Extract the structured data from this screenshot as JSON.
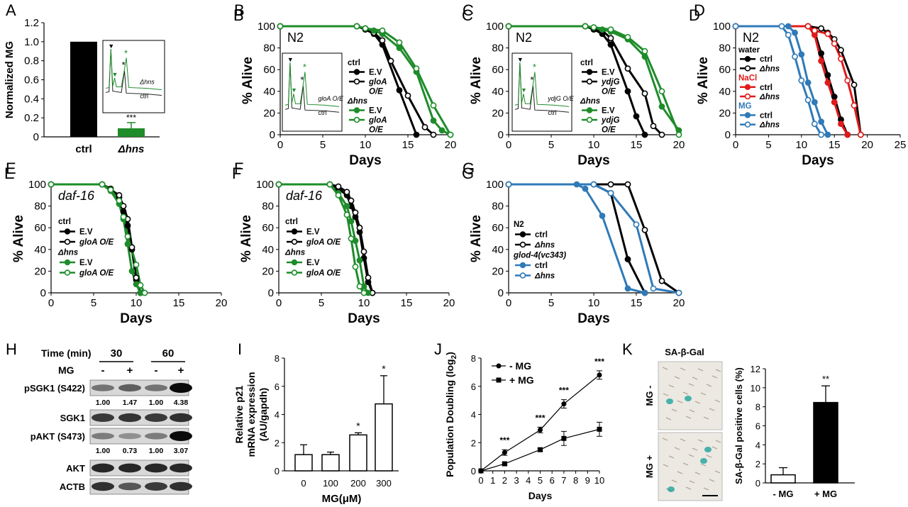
{
  "colors": {
    "black": "#000000",
    "green": "#1e8c2a",
    "red": "#e01b1b",
    "blue": "#2f7ab8",
    "gray": "#777777",
    "teal": "#2aa7a0"
  },
  "chart_data": [
    {
      "id": "A",
      "letter": "A",
      "type": "bar",
      "ylabel": "Normalized MG",
      "ylim": [
        0,
        1.2
      ],
      "yticks": [
        "0",
        "0.2",
        "0.4",
        "0.6",
        "0.8",
        "1.0",
        "1.2"
      ],
      "categories": [
        "ctrl",
        "Δhns"
      ],
      "values": [
        1.0,
        0.09
      ],
      "errors": [
        0,
        0.06
      ],
      "bar_colors": [
        "black",
        "green"
      ],
      "sig": "***",
      "inset_labels": [
        "Δhns",
        "ctrl"
      ]
    },
    {
      "id": "B",
      "letter": "B",
      "type": "line",
      "strain": "N2",
      "xlabel": "Days",
      "ylabel": "% Alive",
      "xlim": [
        0,
        20
      ],
      "ylim": [
        0,
        100
      ],
      "xticks": [
        "0",
        "5",
        "10",
        "15",
        "20"
      ],
      "yticks": [
        "0",
        "20",
        "40",
        "60",
        "80",
        "100"
      ],
      "inset_labels": [
        "gloA O/E",
        "ctrl"
      ],
      "legend_groups": [
        "ctrl",
        "Δhns"
      ],
      "series": [
        {
          "name": "E.V",
          "group": "ctrl",
          "color": "black",
          "filled": true,
          "x": [
            0,
            9,
            10,
            11,
            12,
            14,
            16
          ],
          "y": [
            100,
            100,
            97,
            93,
            83,
            41,
            0
          ]
        },
        {
          "name": "gloA O/E",
          "group": "ctrl",
          "color": "black",
          "filled": false,
          "x": [
            0,
            9,
            10,
            11,
            12,
            13,
            15,
            17,
            18
          ],
          "y": [
            100,
            100,
            98,
            94,
            87,
            68,
            36,
            7,
            0
          ]
        },
        {
          "name": "E.V",
          "group": "Δhns",
          "color": "green",
          "filled": true,
          "x": [
            0,
            9,
            11,
            12,
            14,
            16,
            18,
            19,
            20
          ],
          "y": [
            100,
            100,
            96,
            93,
            80,
            58,
            13,
            4,
            0
          ]
        },
        {
          "name": "gloA O/E",
          "group": "Δhns",
          "color": "green",
          "filled": false,
          "x": [
            0,
            9,
            10,
            12,
            14,
            16,
            18,
            20
          ],
          "y": [
            100,
            100,
            98,
            96,
            85,
            61,
            27,
            0
          ]
        }
      ]
    },
    {
      "id": "C",
      "letter": "C",
      "type": "line",
      "strain": "N2",
      "xlabel": "Days",
      "ylabel": "% Alive",
      "xlim": [
        0,
        20
      ],
      "ylim": [
        0,
        100
      ],
      "xticks": [
        "0",
        "5",
        "10",
        "15",
        "20"
      ],
      "yticks": [
        "0",
        "20",
        "40",
        "60",
        "80",
        "100"
      ],
      "inset_labels": [
        "ydjG O/E",
        "ctrl"
      ],
      "legend_groups": [
        "ctrl",
        "Δhns"
      ],
      "series": [
        {
          "name": "E.V",
          "group": "ctrl",
          "color": "black",
          "filled": true,
          "x": [
            0,
            9,
            10,
            11,
            12,
            14,
            15,
            16
          ],
          "y": [
            100,
            100,
            97,
            93,
            83,
            40,
            17,
            0
          ]
        },
        {
          "name": "ydjG O/E",
          "group": "ctrl",
          "color": "black",
          "filled": false,
          "x": [
            0,
            9,
            10,
            11,
            12,
            14,
            16,
            17,
            18
          ],
          "y": [
            100,
            100,
            98,
            96,
            89,
            61,
            38,
            8,
            0
          ]
        },
        {
          "name": "E.V",
          "group": "Δhns",
          "color": "green",
          "filled": true,
          "x": [
            0,
            9,
            11,
            12,
            14,
            16,
            18,
            20
          ],
          "y": [
            100,
            100,
            97,
            95,
            88,
            72,
            26,
            4
          ]
        },
        {
          "name": "ydjG O/E",
          "group": "Δhns",
          "color": "green",
          "filled": false,
          "x": [
            0,
            9,
            10,
            12,
            14,
            16,
            18,
            20
          ],
          "y": [
            100,
            100,
            99,
            97,
            90,
            77,
            40,
            0
          ]
        }
      ]
    },
    {
      "id": "D",
      "letter": "D",
      "type": "line",
      "strain": "N2",
      "xlabel": "Days",
      "ylabel": "% Alive",
      "xlim": [
        0,
        25
      ],
      "ylim": [
        0,
        100
      ],
      "xticks": [
        "0",
        "5",
        "10",
        "15",
        "20",
        "25"
      ],
      "yticks": [
        "0",
        "20",
        "40",
        "60",
        "80",
        "100"
      ],
      "legend_groups": [
        "water",
        "NaCl",
        "MG"
      ],
      "series": [
        {
          "name": "ctrl",
          "group": "water",
          "color": "black",
          "filled": true,
          "x": [
            0,
            11,
            12,
            13,
            14,
            15,
            16,
            17
          ],
          "y": [
            100,
            100,
            95,
            75,
            55,
            35,
            14,
            0
          ]
        },
        {
          "name": "Δhns",
          "group": "water",
          "color": "black",
          "filled": false,
          "x": [
            0,
            11,
            13,
            14,
            15,
            16,
            18,
            19
          ],
          "y": [
            100,
            100,
            98,
            94,
            88,
            78,
            46,
            0
          ]
        },
        {
          "name": "ctrl",
          "group": "NaCl",
          "color": "red",
          "filled": true,
          "x": [
            0,
            11,
            12,
            13,
            14,
            15,
            16,
            17
          ],
          "y": [
            100,
            100,
            92,
            68,
            48,
            30,
            10,
            0
          ]
        },
        {
          "name": "Δhns",
          "group": "NaCl",
          "color": "red",
          "filled": false,
          "x": [
            0,
            11,
            12,
            14,
            15,
            16,
            17,
            18,
            19
          ],
          "y": [
            100,
            100,
            96,
            93,
            84,
            70,
            50,
            27,
            0
          ]
        },
        {
          "name": "ctrl",
          "group": "MG",
          "color": "blue",
          "filled": true,
          "x": [
            0,
            8,
            9,
            10,
            11,
            12,
            13,
            14
          ],
          "y": [
            100,
            100,
            94,
            74,
            48,
            30,
            12,
            0
          ]
        },
        {
          "name": "Δhns",
          "group": "MG",
          "color": "blue",
          "filled": false,
          "x": [
            0,
            7,
            8,
            9,
            10,
            11,
            12,
            13
          ],
          "y": [
            100,
            100,
            92,
            72,
            50,
            32,
            10,
            0
          ]
        }
      ]
    },
    {
      "id": "E",
      "letter": "E",
      "type": "line",
      "strain": "daf-16",
      "xlabel": "Days",
      "ylabel": "% Alive",
      "xlim": [
        0,
        20
      ],
      "ylim": [
        0,
        100
      ],
      "xticks": [
        "0",
        "5",
        "10",
        "15",
        "20"
      ],
      "yticks": [
        "0",
        "20",
        "40",
        "60",
        "80",
        "100"
      ],
      "legend_groups": [
        "ctrl",
        "Δhns"
      ],
      "series": [
        {
          "name": "E.V",
          "group": "ctrl",
          "color": "black",
          "filled": true,
          "x": [
            0,
            6,
            7,
            8,
            8.5,
            9,
            9.5,
            10,
            10.5
          ],
          "y": [
            100,
            100,
            96,
            88,
            75,
            62,
            40,
            12,
            0
          ]
        },
        {
          "name": "gloA O/E",
          "group": "ctrl",
          "color": "black",
          "filled": false,
          "x": [
            0,
            6,
            7,
            8,
            8.5,
            9,
            9.5,
            10,
            10.5
          ],
          "y": [
            100,
            100,
            95,
            90,
            80,
            68,
            42,
            14,
            0
          ]
        },
        {
          "name": "E.V",
          "group": "Δhns",
          "color": "green",
          "filled": true,
          "x": [
            0,
            6,
            7,
            8,
            8.5,
            9,
            9.5,
            10,
            10.5
          ],
          "y": [
            100,
            100,
            94,
            82,
            68,
            45,
            20,
            8,
            0
          ]
        },
        {
          "name": "gloA O/E",
          "group": "Δhns",
          "color": "green",
          "filled": false,
          "x": [
            0,
            6,
            7,
            8,
            8.5,
            9,
            10,
            10.5,
            11
          ],
          "y": [
            100,
            100,
            95,
            85,
            70,
            52,
            26,
            7,
            0
          ]
        }
      ]
    },
    {
      "id": "F",
      "letter": "F",
      "type": "line",
      "strain": "daf-16",
      "xlabel": "Days",
      "ylabel": "% Alive",
      "xlim": [
        0,
        20
      ],
      "ylim": [
        0,
        100
      ],
      "xticks": [
        "0",
        "5",
        "10",
        "15",
        "20"
      ],
      "yticks": [
        "0",
        "20",
        "40",
        "60",
        "80",
        "100"
      ],
      "legend_groups": [
        "ctrl",
        "Δhns"
      ],
      "series": [
        {
          "name": "E.V",
          "group": "ctrl",
          "color": "black",
          "filled": true,
          "x": [
            0,
            6,
            7,
            8,
            8.5,
            9,
            9.5,
            10,
            10.5,
            11
          ],
          "y": [
            100,
            100,
            96,
            90,
            80,
            70,
            56,
            32,
            10,
            0
          ]
        },
        {
          "name": "gloA O/E",
          "group": "ctrl",
          "color": "black",
          "filled": false,
          "x": [
            0,
            6,
            7,
            8,
            8.5,
            9,
            9.5,
            10,
            10.5,
            11
          ],
          "y": [
            100,
            100,
            98,
            93,
            85,
            74,
            60,
            38,
            14,
            0
          ]
        },
        {
          "name": "E.V",
          "group": "Δhns",
          "color": "green",
          "filled": true,
          "x": [
            0,
            6,
            7,
            8,
            8.5,
            9,
            9.5,
            10,
            10.5
          ],
          "y": [
            100,
            100,
            92,
            80,
            66,
            48,
            30,
            6,
            0
          ]
        },
        {
          "name": "gloA O/E",
          "group": "Δhns",
          "color": "green",
          "filled": false,
          "x": [
            0,
            6,
            7,
            8,
            8.5,
            9,
            9.5,
            10
          ],
          "y": [
            100,
            100,
            90,
            72,
            50,
            24,
            6,
            0
          ]
        }
      ]
    },
    {
      "id": "G",
      "letter": "G",
      "type": "line",
      "xlabel": "Days",
      "ylabel": "% Alive",
      "xlim": [
        0,
        20
      ],
      "ylim": [
        0,
        100
      ],
      "xticks": [
        "0",
        "5",
        "10",
        "15",
        "20"
      ],
      "yticks": [
        "0",
        "20",
        "40",
        "60",
        "80",
        "100"
      ],
      "legend_groups": [
        "N2",
        "glod-4(vc343)"
      ],
      "series": [
        {
          "name": "ctrl",
          "group": "N2",
          "color": "black",
          "filled": true,
          "x": [
            0,
            10,
            12,
            14,
            16
          ],
          "y": [
            100,
            100,
            92,
            31,
            0
          ]
        },
        {
          "name": "Δhns",
          "group": "N2",
          "color": "black",
          "filled": false,
          "x": [
            0,
            12,
            14,
            16,
            18,
            20
          ],
          "y": [
            100,
            100,
            100,
            58,
            11,
            0
          ]
        },
        {
          "name": "ctrl",
          "group": "glod-4(vc343)",
          "color": "blue",
          "filled": true,
          "x": [
            0,
            8,
            9,
            11,
            14,
            16
          ],
          "y": [
            100,
            100,
            96,
            71,
            4,
            0
          ]
        },
        {
          "name": "Δhns",
          "group": "glod-4(vc343)",
          "color": "blue",
          "filled": false,
          "x": [
            0,
            10,
            12,
            15,
            17,
            20
          ],
          "y": [
            100,
            100,
            92,
            63,
            4,
            0
          ]
        }
      ]
    },
    {
      "id": "I",
      "letter": "I",
      "type": "bar",
      "ylabel_lines": [
        "Relative p21",
        "mRNA expression",
        "(AU/gapdh)"
      ],
      "xlabel": "MG(μM)",
      "ylim": [
        0,
        8
      ],
      "yticks": [
        "0",
        "2",
        "4",
        "6",
        "8"
      ],
      "categories": [
        "0",
        "100",
        "200",
        "300"
      ],
      "values": [
        1.15,
        1.15,
        2.55,
        4.75
      ],
      "errors": [
        0.7,
        0.18,
        0.15,
        2.0
      ],
      "sig": [
        "",
        "",
        "*",
        "*"
      ]
    },
    {
      "id": "J",
      "letter": "J",
      "type": "line",
      "ylabel": "Population Doubling (log",
      "ylabel_sub": "2",
      "ylabel_end": ")",
      "xlabel": "Days",
      "xlim": [
        0,
        10
      ],
      "ylim": [
        0,
        8
      ],
      "xticks": [
        "0",
        "1",
        "2",
        "3",
        "4",
        "5",
        "6",
        "7",
        "8",
        "9",
        "10"
      ],
      "yticks": [
        "0",
        "2",
        "4",
        "6",
        "8"
      ],
      "series": [
        {
          "name": "- MG",
          "marker": "circle",
          "x": [
            0,
            2,
            5,
            7,
            10
          ],
          "y": [
            0,
            1.3,
            2.9,
            4.75,
            6.8
          ],
          "err": [
            0,
            0.2,
            0.2,
            0.3,
            0.3
          ]
        },
        {
          "name": "+ MG",
          "marker": "square",
          "x": [
            0,
            2,
            5,
            7,
            10
          ],
          "y": [
            0,
            0.5,
            1.5,
            2.3,
            2.95
          ],
          "err": [
            0,
            0.1,
            0.1,
            0.5,
            0.5
          ]
        }
      ],
      "sig_x": [
        2,
        5,
        7,
        10
      ],
      "sig": "***"
    },
    {
      "id": "K",
      "letter": "K",
      "type": "bar",
      "ylabel": "SA-β-Gal positive cells (%)",
      "ylim": [
        0,
        12
      ],
      "yticks": [
        "0",
        "2",
        "4",
        "6",
        "8",
        "10",
        "12"
      ],
      "categories": [
        "- MG",
        "+ MG"
      ],
      "values": [
        0.85,
        8.45
      ],
      "errors": [
        0.75,
        1.75
      ],
      "bar_colors": [
        "white",
        "black"
      ],
      "sig": "**",
      "image_title": "SA-β-Gal",
      "image_labels": [
        "MG -",
        "MG +"
      ]
    }
  ],
  "western_blot": {
    "letter": "H",
    "time_label": "Time (min)",
    "time_points": [
      "30",
      "60"
    ],
    "mg_label": "MG",
    "mg_states": [
      "-",
      "+",
      "-",
      "+"
    ],
    "rows": [
      {
        "name": "pSGK1 (S422)",
        "intensities": [
          0.45,
          0.55,
          0.45,
          1.0
        ],
        "quant": [
          "1.00",
          "1.47",
          "1.00",
          "4.38"
        ]
      },
      {
        "name": "SGK1",
        "intensities": [
          0.75,
          0.78,
          0.75,
          0.8
        ],
        "quant": []
      },
      {
        "name": "pAKT (S473)",
        "intensities": [
          0.4,
          0.3,
          0.4,
          1.0
        ],
        "quant": [
          "1.00",
          "0.73",
          "1.00",
          "3.07"
        ]
      },
      {
        "name": "AKT",
        "intensities": [
          0.85,
          0.85,
          0.85,
          0.85
        ],
        "quant": []
      },
      {
        "name": "ACTB",
        "intensities": [
          0.8,
          0.6,
          0.75,
          0.8
        ],
        "quant": []
      }
    ]
  }
}
